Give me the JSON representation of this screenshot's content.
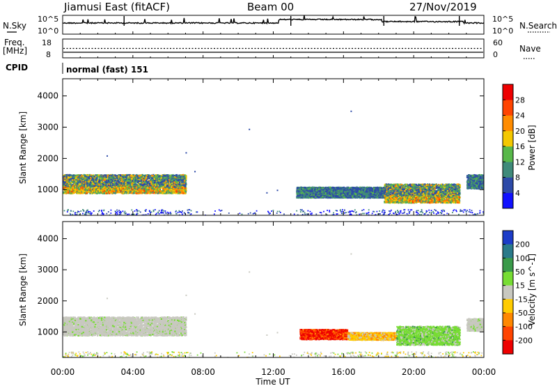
{
  "header": {
    "radar": "Jiamusi East (fitACF)",
    "beam": "Beam 00",
    "date": "27/Nov/2019"
  },
  "strip1": {
    "left_label": "N.Sky",
    "right_label": "N.Search",
    "left_ticks": [
      "10^5",
      "10^0"
    ],
    "right_ticks": [
      "10^5",
      "10^0"
    ]
  },
  "strip2": {
    "left_label_1": "Freq.",
    "left_label_2": "[MHz]",
    "right_label": "Nave",
    "left_ticks": [
      "18",
      "8"
    ],
    "right_ticks": [
      "60",
      "0"
    ]
  },
  "cpid": {
    "label": "CPID",
    "value": "normal (fast) 151"
  },
  "chart_data": [
    {
      "type": "heatmap",
      "name": "power",
      "ylabel": "Slant Range [km]",
      "xlabel": "",
      "xlim": [
        "00:00",
        "24:00"
      ],
      "ylim": [
        180,
        4550
      ],
      "x_ticks": [
        "00:00",
        "04:00",
        "08:00",
        "12:00",
        "16:00",
        "20:00",
        "00:00"
      ],
      "y_ticks": [
        1000,
        2000,
        3000,
        4000
      ],
      "colorbar": {
        "label": "Power [dB]",
        "ticks": [
          "4",
          "8",
          "12",
          "16",
          "20",
          "24",
          "28"
        ],
        "colors": [
          "#1010ff",
          "#2d4aa8",
          "#3f8a7a",
          "#58b84a",
          "#f4c800",
          "#ff8c00",
          "#ff4400",
          "#ee0000"
        ]
      },
      "regions": [
        {
          "x_start": 0.0,
          "x_end": 7.0,
          "range_low": 900,
          "range_high": 1500,
          "level": "mixed-strong"
        },
        {
          "x_start": 13.3,
          "x_end": 18.3,
          "range_low": 760,
          "range_high": 1100,
          "level": "moderate"
        },
        {
          "x_start": 18.3,
          "x_end": 22.6,
          "range_low": 600,
          "range_high": 1200,
          "level": "mixed-strong"
        },
        {
          "x_start": 23.0,
          "x_end": 24.0,
          "range_low": 1050,
          "range_high": 1500,
          "level": "moderate"
        }
      ]
    },
    {
      "type": "heatmap",
      "name": "velocity",
      "ylabel": "Slant Range [km]",
      "xlabel": "Time UT",
      "xlim": [
        "00:00",
        "24:00"
      ],
      "ylim": [
        180,
        4550
      ],
      "x_ticks": [
        "00:00",
        "04:00",
        "08:00",
        "12:00",
        "16:00",
        "20:00",
        "00:00"
      ],
      "y_ticks": [
        1000,
        2000,
        3000,
        4000
      ],
      "colorbar": {
        "label": "Velocity [m s^-1]",
        "ticks": [
          "200",
          "100",
          "50",
          "15",
          "-15",
          "-50",
          "-100",
          "-200"
        ],
        "colors": [
          "#1c3cc8",
          "#2a7a8a",
          "#3a9a4a",
          "#77dd33",
          "#c8c8c0",
          "#ffcc00",
          "#ff8800",
          "#ff4400",
          "#ee0000"
        ]
      },
      "regions": [
        {
          "x_start": 0.0,
          "x_end": 7.0,
          "range_low": 900,
          "range_high": 1500,
          "level": "near-zero"
        },
        {
          "x_start": 13.5,
          "x_end": 16.2,
          "range_low": 780,
          "range_high": 1100,
          "level": "toward (-100 to -200)"
        },
        {
          "x_start": 16.2,
          "x_end": 19.0,
          "range_low": 760,
          "range_high": 1000,
          "level": "-15 to -50"
        },
        {
          "x_start": 19.0,
          "x_end": 22.6,
          "range_low": 600,
          "range_high": 1200,
          "level": "away (15 to 50)"
        },
        {
          "x_start": 23.0,
          "x_end": 24.0,
          "range_low": 1050,
          "range_high": 1450,
          "level": "near-zero"
        }
      ]
    }
  ]
}
